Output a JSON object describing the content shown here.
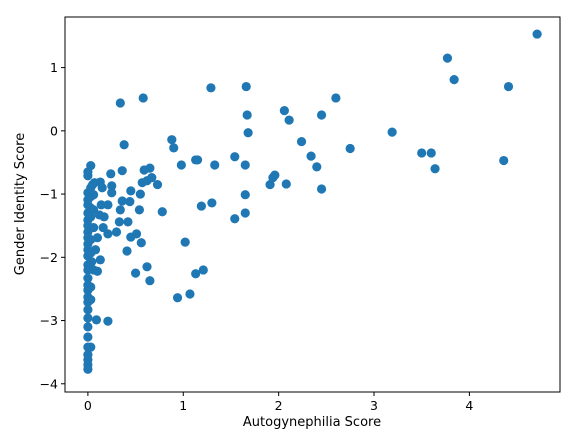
{
  "chart_data": {
    "type": "scatter",
    "xlabel": "Autogynephilia Score",
    "ylabel": "Gender Identity Score",
    "color": "#1f77b4",
    "xlim": [
      -0.24,
      4.95
    ],
    "ylim": [
      -4.13,
      1.8
    ],
    "xticks": [
      0,
      1,
      2,
      3,
      4
    ],
    "yticks": [
      {
        "value": -4,
        "label": "−4"
      },
      {
        "value": -3,
        "label": "−3"
      },
      {
        "value": -2,
        "label": "−2"
      },
      {
        "value": -1,
        "label": "−1"
      },
      0,
      1
    ],
    "grid": false,
    "x": [
      4.71,
      3.77,
      3.84,
      4.41,
      4.36,
      3.5,
      3.6,
      3.64,
      3.19,
      2.75,
      2.6,
      2.45,
      2.06,
      2.11,
      2.24,
      2.34,
      2.4,
      2.45,
      2.08,
      1.91,
      1.96,
      1.94,
      1.66,
      1.67,
      1.68,
      1.65,
      1.54,
      1.65,
      1.65,
      1.54,
      1.29,
      1.33,
      1.13,
      1.15,
      1.3,
      1.19,
      1.21,
      1.13,
      1.07,
      1.02,
      0.94,
      0.98,
      0.88,
      0.9,
      0.78,
      0.73,
      0.67,
      0.65,
      0.58,
      0.59,
      0.57,
      0.62,
      0.55,
      0.54,
      0.56,
      0.62,
      0.65,
      0.5,
      0.51,
      0.45,
      0.41,
      0.45,
      0.44,
      0.38,
      0.34,
      0.36,
      0.34,
      0.33,
      0.42,
      0.3,
      0.36,
      0.25,
      0.25,
      0.24,
      0.21,
      0.21,
      0.21,
      0.12,
      0.14,
      0.15,
      0.13,
      0.07,
      0.09,
      0.13,
      0.1,
      0.16,
      0.17,
      0.1,
      0.08,
      0.04,
      0.03,
      0.05,
      0,
      0,
      0,
      0,
      0,
      0,
      0,
      0,
      0,
      0,
      0,
      0,
      0,
      0,
      0,
      0,
      0,
      0,
      0,
      0,
      0,
      0,
      0,
      0,
      0,
      0,
      0,
      0,
      0,
      0.03,
      0.03,
      0.03,
      0.03,
      0.03,
      0.03,
      0.03,
      0.03,
      0.03,
      0.03,
      0.06,
      0.06,
      0.06,
      0.06
    ],
    "values": [
      1.53,
      1.15,
      0.81,
      0.7,
      -0.47,
      -0.35,
      -0.35,
      -0.6,
      -0.02,
      -0.28,
      0.52,
      0.25,
      0.32,
      0.17,
      -0.17,
      -0.4,
      -0.57,
      -0.92,
      -0.84,
      -0.85,
      -0.7,
      -0.74,
      0.7,
      0.25,
      -0.03,
      -0.54,
      -0.41,
      -1.01,
      -1.3,
      -1.39,
      0.68,
      -0.54,
      -0.46,
      -0.46,
      -1.14,
      -1.19,
      -2.2,
      -2.26,
      -2.58,
      -1.76,
      -2.64,
      -0.54,
      -0.14,
      -0.27,
      -1.28,
      -0.85,
      -0.74,
      -0.59,
      0.52,
      -0.62,
      -0.82,
      -0.79,
      -1.0,
      -1.25,
      -1.77,
      -2.15,
      -2.37,
      -2.25,
      -1.63,
      -1.68,
      -1.9,
      -0.95,
      -1.12,
      -0.22,
      0.44,
      -0.63,
      -1.25,
      -1.44,
      -1.44,
      -1.6,
      -1.11,
      -0.87,
      -0.98,
      -0.68,
      -1.17,
      -1.63,
      -3.01,
      -1.33,
      -1.17,
      -0.9,
      -0.81,
      -0.82,
      -2.99,
      -2.04,
      -2.22,
      -1.53,
      -1.36,
      -1.69,
      -1.88,
      -2.07,
      -0.55,
      -0.85,
      -0.65,
      -0.71,
      -0.98,
      -1.09,
      -1.17,
      -1.3,
      -1.41,
      -1.5,
      -1.6,
      -1.69,
      -1.79,
      -1.88,
      -1.98,
      -2.12,
      -2.2,
      -2.33,
      -2.44,
      -2.52,
      -2.63,
      -2.71,
      -2.83,
      -2.96,
      -3.1,
      -3.26,
      -3.42,
      -3.54,
      -3.62,
      -3.7,
      -3.77,
      -0.9,
      -1.04,
      -1.22,
      -1.36,
      -1.72,
      -1.93,
      -2.17,
      -2.47,
      -2.67,
      -3.42,
      -1.01,
      -1.25,
      -1.53,
      -2.2
    ]
  }
}
